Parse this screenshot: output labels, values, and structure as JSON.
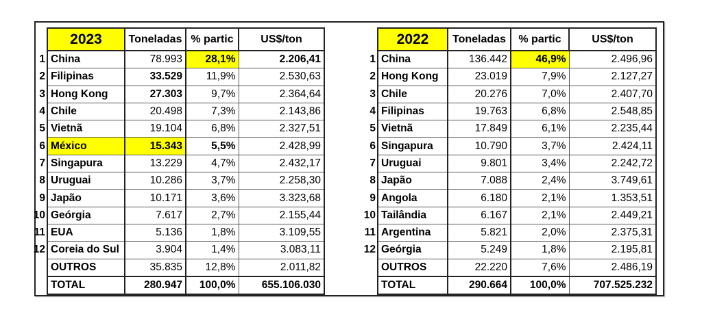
{
  "tables": {
    "t2023": {
      "year": "2023",
      "headers": {
        "tons": "Toneladas",
        "share": "% partic",
        "price": "US$/ton"
      },
      "rows": [
        {
          "rank": "1",
          "country": "China",
          "tons": "78.993",
          "share": "28,1%",
          "price": "2.206,41"
        },
        {
          "rank": "2",
          "country": "Filipinas",
          "tons": "33.529",
          "share": "11,9%",
          "price": "2.530,63"
        },
        {
          "rank": "3",
          "country": "Hong Kong",
          "tons": "27.303",
          "share": "9,7%",
          "price": "2.364,64"
        },
        {
          "rank": "4",
          "country": "Chile",
          "tons": "20.498",
          "share": "7,3%",
          "price": "2.143,86"
        },
        {
          "rank": "5",
          "country": "Vietnã",
          "tons": "19.104",
          "share": "6,8%",
          "price": "2.327,51"
        },
        {
          "rank": "6",
          "country": "México",
          "tons": "15.343",
          "share": "5,5%",
          "price": "2.428,99"
        },
        {
          "rank": "7",
          "country": "Singapura",
          "tons": "13.229",
          "share": "4,7%",
          "price": "2.432,17"
        },
        {
          "rank": "8",
          "country": "Uruguai",
          "tons": "10.286",
          "share": "3,7%",
          "price": "2.258,30"
        },
        {
          "rank": "9",
          "country": "Japão",
          "tons": "10.171",
          "share": "3,6%",
          "price": "3.323,68"
        },
        {
          "rank": "10",
          "country": "Geórgia",
          "tons": "7.617",
          "share": "2,7%",
          "price": "2.155,44"
        },
        {
          "rank": "11",
          "country": "EUA",
          "tons": "5.136",
          "share": "1,8%",
          "price": "3.109,55"
        },
        {
          "rank": "12",
          "country": "Coreia do Sul",
          "tons": "3.904",
          "share": "1,4%",
          "price": "3.083,11"
        }
      ],
      "others": {
        "country": "OUTROS",
        "tons": "35.835",
        "share": "12,8%",
        "price": "2.011,82"
      },
      "total": {
        "country": "TOTAL",
        "tons": "280.947",
        "share": "100,0%",
        "price": "655.106.030"
      }
    },
    "t2022": {
      "year": "2022",
      "headers": {
        "tons": "Toneladas",
        "share": "% partic",
        "price": "US$/ton"
      },
      "rows": [
        {
          "rank": "1",
          "country": "China",
          "tons": "136.442",
          "share": "46,9%",
          "price": "2.496,96"
        },
        {
          "rank": "2",
          "country": "Hong Kong",
          "tons": "23.019",
          "share": "7,9%",
          "price": "2.127,27"
        },
        {
          "rank": "3",
          "country": "Chile",
          "tons": "20.276",
          "share": "7,0%",
          "price": "2.407,70"
        },
        {
          "rank": "4",
          "country": "Filipinas",
          "tons": "19.763",
          "share": "6,8%",
          "price": "2.548,85"
        },
        {
          "rank": "5",
          "country": "Vietnã",
          "tons": "17.849",
          "share": "6,1%",
          "price": "2.235,44"
        },
        {
          "rank": "6",
          "country": "Singapura",
          "tons": "10.790",
          "share": "3,7%",
          "price": "2.424,11"
        },
        {
          "rank": "7",
          "country": "Uruguai",
          "tons": "9.801",
          "share": "3,4%",
          "price": "2.242,72"
        },
        {
          "rank": "8",
          "country": "Japão",
          "tons": "7.088",
          "share": "2,4%",
          "price": "3.749,61"
        },
        {
          "rank": "9",
          "country": "Angola",
          "tons": "6.180",
          "share": "2,1%",
          "price": "1.353,51"
        },
        {
          "rank": "10",
          "country": "Tailândia",
          "tons": "6.167",
          "share": "2,1%",
          "price": "2.449,21"
        },
        {
          "rank": "11",
          "country": "Argentina",
          "tons": "5.821",
          "share": "2,0%",
          "price": "2.375,31"
        },
        {
          "rank": "12",
          "country": "Geórgia",
          "tons": "5.249",
          "share": "1,8%",
          "price": "2.195,81"
        }
      ],
      "others": {
        "country": "OUTROS",
        "tons": "22.220",
        "share": "7,6%",
        "price": "2.486,19"
      },
      "total": {
        "country": "TOTAL",
        "tons": "290.664",
        "share": "100,0%",
        "price": "707.525.232"
      }
    }
  },
  "highlight_color": "#ffff00"
}
